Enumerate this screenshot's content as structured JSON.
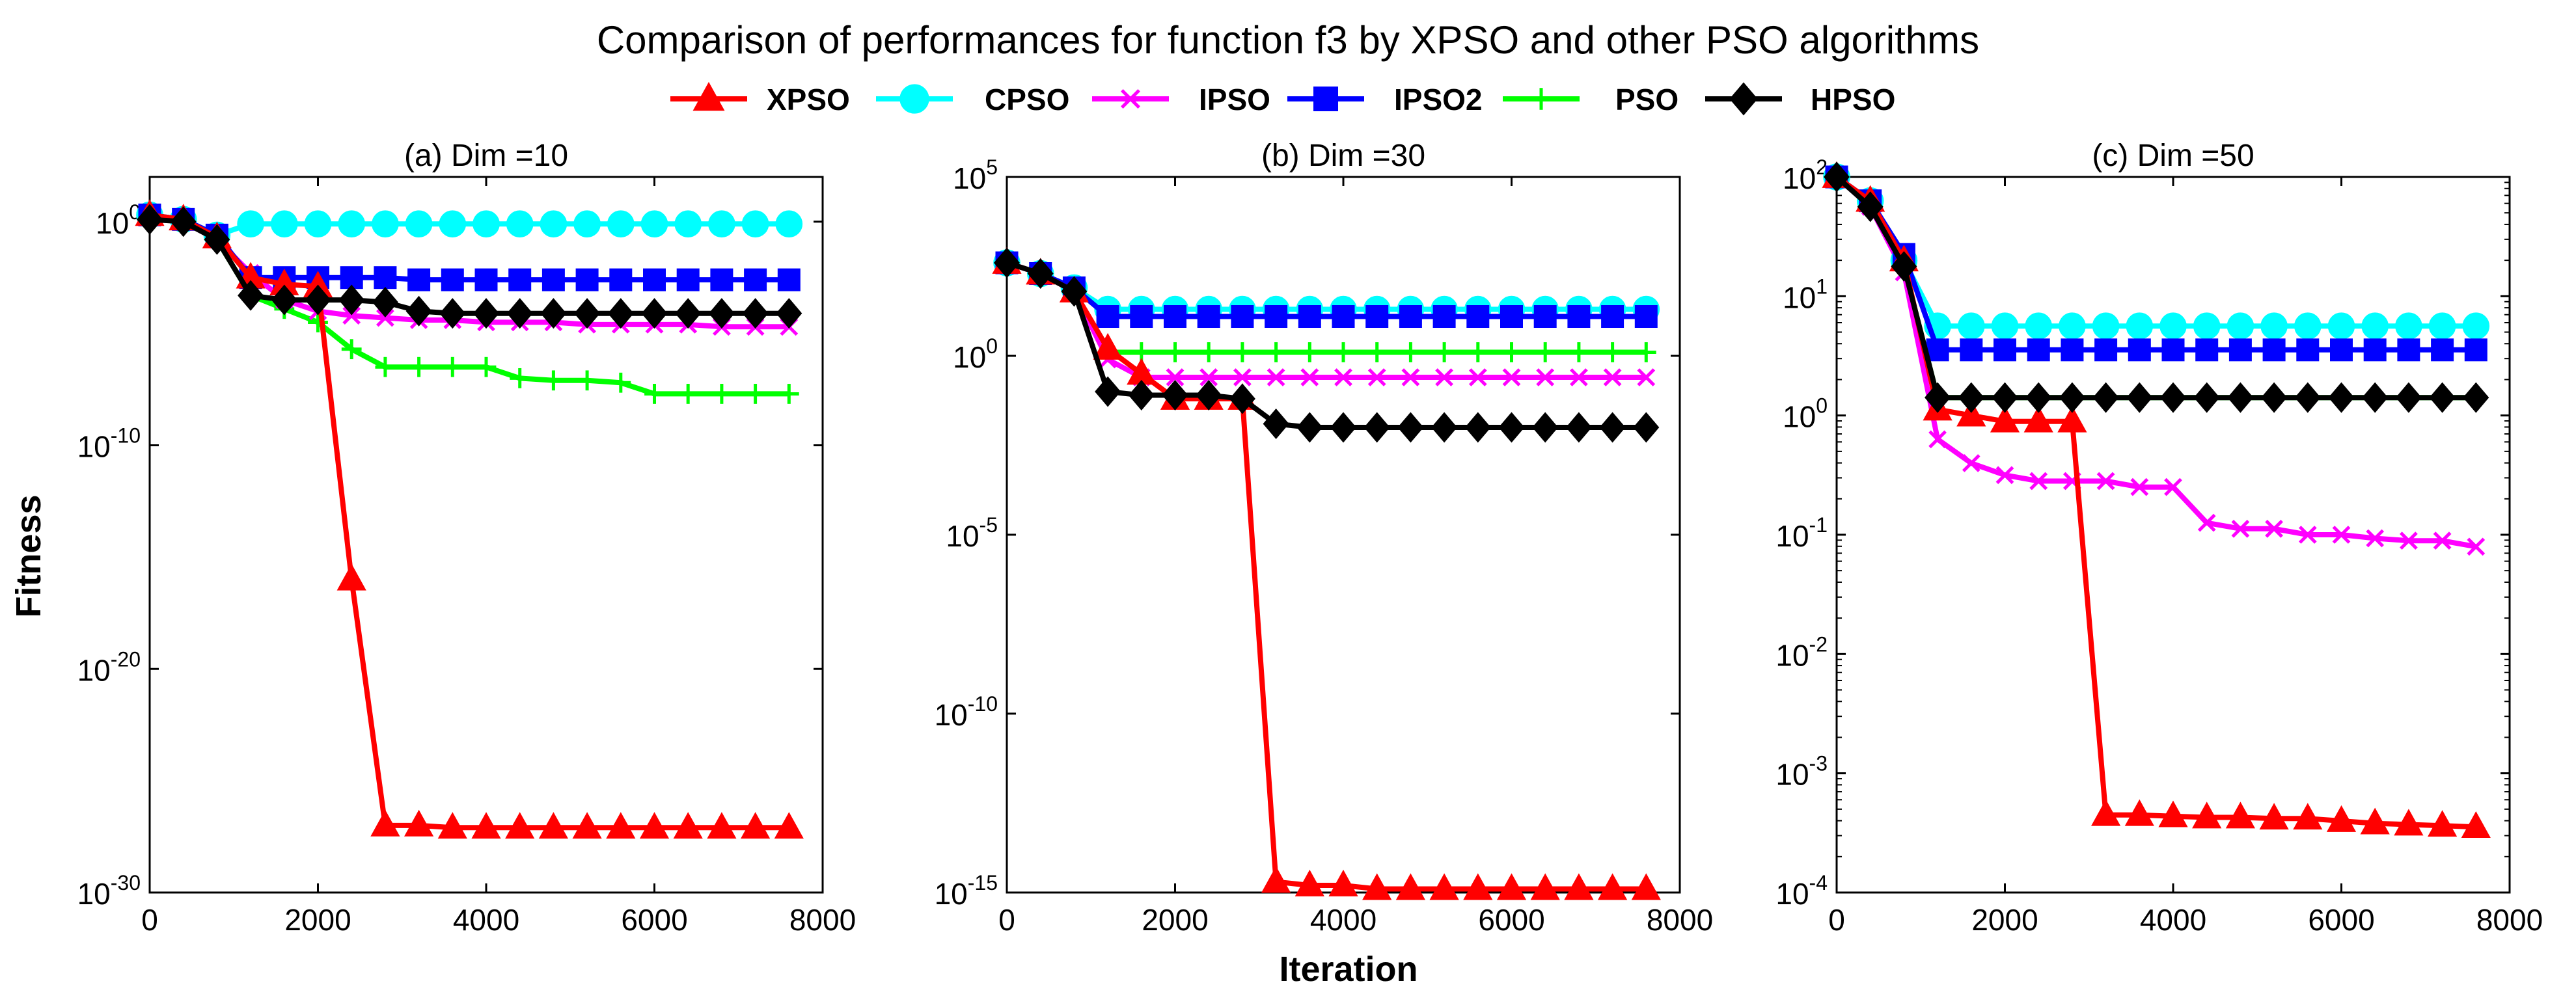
{
  "figure": {
    "suptitle": "Comparison of performances for function f3 by XPSO and other PSO algorithms",
    "ylabel": "Fitness",
    "xlabel": "Iteration"
  },
  "legend": [
    {
      "name": "XPSO",
      "color": "#ff0000",
      "marker": "triangle"
    },
    {
      "name": "CPSO",
      "color": "#00ffff",
      "marker": "circle"
    },
    {
      "name": "IPSO",
      "color": "#ff00ff",
      "marker": "x"
    },
    {
      "name": "IPSO2",
      "color": "#0000ff",
      "marker": "square"
    },
    {
      "name": "PSO",
      "color": "#00ff00",
      "marker": "plus"
    },
    {
      "name": "HPSO",
      "color": "#000000",
      "marker": "diamond"
    }
  ],
  "chart_data": [
    {
      "type": "line",
      "title": "(a) Dim =10",
      "xlabel": "",
      "ylabel": "Fitness",
      "yscale": "log",
      "xlim": [
        0,
        8000
      ],
      "ylim_exp": [
        -30,
        2
      ],
      "xticks": [
        "0",
        "2000",
        "4000",
        "6000",
        "8000"
      ],
      "yticks": [
        {
          "base": "10",
          "exp": "-30",
          "e": -30
        },
        {
          "base": "10",
          "exp": "-20",
          "e": -20
        },
        {
          "base": "10",
          "exp": "-10",
          "e": -10
        },
        {
          "base": "10",
          "exp": "0",
          "e": 0
        }
      ],
      "x": [
        0,
        400,
        800,
        1200,
        1600,
        2000,
        2400,
        2800,
        3200,
        3600,
        4000,
        4400,
        4800,
        5200,
        5600,
        6000,
        6400,
        6800,
        7200,
        7600
      ],
      "series": [
        {
          "name": "XPSO",
          "log10": [
            0.3,
            0.1,
            -0.7,
            -2.5,
            -2.8,
            -2.9,
            -16,
            -27,
            -27,
            -27.1,
            -27.1,
            -27.1,
            -27.1,
            -27.1,
            -27.1,
            -27.1,
            -27.1,
            -27.1,
            -27.1,
            -27.1
          ]
        },
        {
          "name": "CPSO",
          "log10": [
            0.3,
            0.1,
            -0.6,
            -0.1,
            -0.1,
            -0.1,
            -0.1,
            -0.1,
            -0.1,
            -0.1,
            -0.1,
            -0.1,
            -0.1,
            -0.1,
            -0.1,
            -0.1,
            -0.1,
            -0.1,
            -0.1,
            -0.1
          ]
        },
        {
          "name": "IPSO",
          "log10": [
            0.2,
            0,
            -0.8,
            -2.3,
            -3.5,
            -4.0,
            -4.2,
            -4.3,
            -4.4,
            -4.4,
            -4.5,
            -4.5,
            -4.5,
            -4.6,
            -4.6,
            -4.6,
            -4.6,
            -4.7,
            -4.7,
            -4.7
          ]
        },
        {
          "name": "IPSO2",
          "log10": [
            0.3,
            0.1,
            -0.6,
            -2.5,
            -2.5,
            -2.5,
            -2.5,
            -2.5,
            -2.6,
            -2.6,
            -2.6,
            -2.6,
            -2.6,
            -2.6,
            -2.6,
            -2.6,
            -2.6,
            -2.6,
            -2.6,
            -2.6
          ]
        },
        {
          "name": "PSO",
          "log10": [
            0.2,
            0,
            -0.8,
            -3.3,
            -3.9,
            -4.5,
            -5.7,
            -6.5,
            -6.5,
            -6.5,
            -6.5,
            -7.0,
            -7.1,
            -7.1,
            -7.2,
            -7.7,
            -7.7,
            -7.7,
            -7.7,
            -7.7
          ]
        },
        {
          "name": "HPSO",
          "log10": [
            0.1,
            0,
            -0.8,
            -3.3,
            -3.5,
            -3.5,
            -3.5,
            -3.6,
            -4.0,
            -4.1,
            -4.1,
            -4.1,
            -4.1,
            -4.1,
            -4.1,
            -4.1,
            -4.1,
            -4.1,
            -4.1,
            -4.1
          ]
        }
      ]
    },
    {
      "type": "line",
      "title": "(b) Dim =30",
      "xlabel": "Iteration",
      "ylabel": "",
      "yscale": "log",
      "xlim": [
        0,
        8000
      ],
      "ylim_exp": [
        -15,
        5
      ],
      "xticks": [
        "0",
        "2000",
        "4000",
        "6000",
        "8000"
      ],
      "yticks": [
        {
          "base": "10",
          "exp": "-15",
          "e": -15
        },
        {
          "base": "10",
          "exp": "-10",
          "e": -10
        },
        {
          "base": "10",
          "exp": "-5",
          "e": -5
        },
        {
          "base": "10",
          "exp": "0",
          "e": 0
        },
        {
          "base": "10",
          "exp": "5",
          "e": 5
        }
      ],
      "x": [
        0,
        400,
        800,
        1200,
        1600,
        2000,
        2400,
        2800,
        3200,
        3600,
        4000,
        4400,
        4800,
        5200,
        5600,
        6000,
        6400,
        6800,
        7200,
        7600
      ],
      "series": [
        {
          "name": "XPSO",
          "log10": [
            2.6,
            2.3,
            1.8,
            0.2,
            -0.5,
            -1.2,
            -1.2,
            -1.2,
            -14.7,
            -14.8,
            -14.8,
            -14.9,
            -14.9,
            -14.9,
            -14.9,
            -14.9,
            -14.9,
            -14.9,
            -14.9,
            -14.9
          ]
        },
        {
          "name": "CPSO",
          "log10": [
            2.6,
            2.3,
            1.9,
            1.3,
            1.3,
            1.3,
            1.3,
            1.3,
            1.3,
            1.3,
            1.3,
            1.3,
            1.3,
            1.3,
            1.3,
            1.3,
            1.3,
            1.3,
            1.3,
            1.3
          ]
        },
        {
          "name": "IPSO",
          "log10": [
            2.6,
            2.3,
            1.8,
            -0.1,
            -0.6,
            -0.6,
            -0.6,
            -0.6,
            -0.6,
            -0.6,
            -0.6,
            -0.6,
            -0.6,
            -0.6,
            -0.6,
            -0.6,
            -0.6,
            -0.6,
            -0.6,
            -0.6
          ]
        },
        {
          "name": "IPSO2",
          "log10": [
            2.6,
            2.3,
            1.9,
            1.1,
            1.1,
            1.1,
            1.1,
            1.1,
            1.1,
            1.1,
            1.1,
            1.1,
            1.1,
            1.1,
            1.1,
            1.1,
            1.1,
            1.1,
            1.1,
            1.1
          ]
        },
        {
          "name": "PSO",
          "log10": [
            2.6,
            2.3,
            1.8,
            0.1,
            0.1,
            0.1,
            0.1,
            0.1,
            0.1,
            0.1,
            0.1,
            0.1,
            0.1,
            0.1,
            0.1,
            0.1,
            0.1,
            0.1,
            0.1,
            0.1
          ]
        },
        {
          "name": "HPSO",
          "log10": [
            2.6,
            2.3,
            1.8,
            -1.0,
            -1.1,
            -1.1,
            -1.1,
            -1.2,
            -1.9,
            -2.0,
            -2.0,
            -2.0,
            -2.0,
            -2.0,
            -2.0,
            -2.0,
            -2.0,
            -2.0,
            -2.0,
            -2.0
          ]
        }
      ]
    },
    {
      "type": "line",
      "title": "(c) Dim =50",
      "xlabel": "",
      "ylabel": "",
      "yscale": "log",
      "xlim": [
        0,
        8000
      ],
      "ylim_exp": [
        -4,
        2
      ],
      "xticks": [
        "0",
        "2000",
        "4000",
        "6000",
        "8000"
      ],
      "yticks": [
        {
          "base": "10",
          "exp": "-4",
          "e": -4
        },
        {
          "base": "10",
          "exp": "-3",
          "e": -3
        },
        {
          "base": "10",
          "exp": "-2",
          "e": -2
        },
        {
          "base": "10",
          "exp": "-1",
          "e": -1
        },
        {
          "base": "10",
          "exp": "0",
          "e": 0
        },
        {
          "base": "10",
          "exp": "1",
          "e": 1
        },
        {
          "base": "10",
          "exp": "2",
          "e": 2
        }
      ],
      "x": [
        0,
        400,
        800,
        1200,
        1600,
        2000,
        2400,
        2800,
        3200,
        3600,
        4000,
        4400,
        4800,
        5200,
        5600,
        6000,
        6400,
        6800,
        7200,
        7600
      ],
      "series": [
        {
          "name": "XPSO",
          "log10": [
            2.0,
            1.8,
            1.3,
            0.05,
            0,
            -0.05,
            -0.05,
            -0.05,
            -3.35,
            -3.35,
            -3.36,
            -3.37,
            -3.37,
            -3.38,
            -3.38,
            -3.4,
            -3.42,
            -3.43,
            -3.44,
            -3.45
          ]
        },
        {
          "name": "CPSO",
          "log10": [
            2.0,
            1.8,
            1.3,
            0.75,
            0.75,
            0.75,
            0.75,
            0.75,
            0.75,
            0.75,
            0.75,
            0.75,
            0.75,
            0.75,
            0.75,
            0.75,
            0.75,
            0.75,
            0.75,
            0.75
          ]
        },
        {
          "name": "IPSO",
          "log10": [
            2.0,
            1.75,
            1.2,
            -0.2,
            -0.4,
            -0.5,
            -0.55,
            -0.55,
            -0.55,
            -0.6,
            -0.6,
            -0.9,
            -0.95,
            -0.95,
            -1.0,
            -1.0,
            -1.03,
            -1.05,
            -1.05,
            -1.1
          ]
        },
        {
          "name": "IPSO2",
          "log10": [
            2.0,
            1.8,
            1.35,
            0.55,
            0.55,
            0.55,
            0.55,
            0.55,
            0.55,
            0.55,
            0.55,
            0.55,
            0.55,
            0.55,
            0.55,
            0.55,
            0.55,
            0.55,
            0.55,
            0.55
          ]
        },
        {
          "name": "PSO",
          "log10": [
            2.0,
            1.75,
            1.25,
            0.15,
            0.15,
            0.15,
            0.15,
            0.15,
            0.15,
            0.15,
            0.15,
            0.15,
            0.15,
            0.15,
            0.15,
            0.15,
            0.15,
            0.15,
            0.15,
            0.15
          ]
        },
        {
          "name": "HPSO",
          "log10": [
            2.0,
            1.75,
            1.25,
            0.15,
            0.15,
            0.15,
            0.15,
            0.15,
            0.15,
            0.15,
            0.15,
            0.15,
            0.15,
            0.15,
            0.15,
            0.15,
            0.15,
            0.15,
            0.15,
            0.15
          ]
        }
      ]
    }
  ]
}
